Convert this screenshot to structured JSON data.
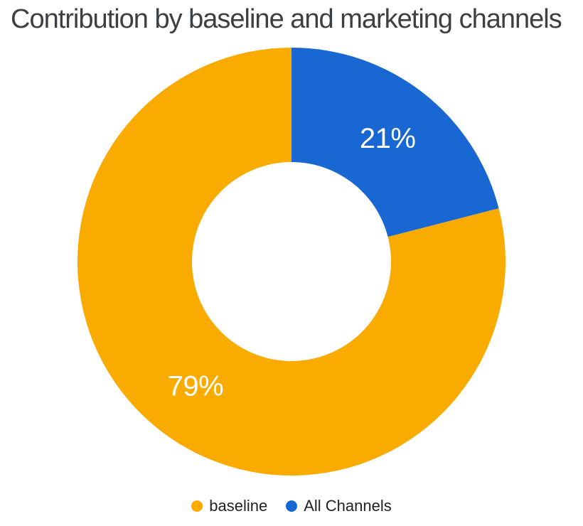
{
  "title": {
    "text": "Contribution by baseline and marketing channels",
    "color": "#3C4043"
  },
  "chart_data": {
    "type": "pie",
    "donut": true,
    "hole_ratio": 0.465,
    "title": "Contribution by baseline and marketing channels",
    "categories": [
      "baseline",
      "All Channels"
    ],
    "values": [
      79,
      21
    ],
    "unit": "%",
    "slices": [
      {
        "label": "baseline",
        "value": 79,
        "display_label": "79%",
        "color": "#F9AB00"
      },
      {
        "label": "All Channels",
        "value": 21,
        "display_label": "21%",
        "color": "#1967D2"
      }
    ],
    "start_angle": "12 o'clock",
    "clockwise_start_label": "All Channels",
    "slice_label_color": "#FFFFFF",
    "legend_position": "bottom"
  },
  "legend": {
    "items": [
      {
        "label": "baseline",
        "color": "#F9AB00"
      },
      {
        "label": "All Channels",
        "color": "#1967D2"
      }
    ]
  }
}
